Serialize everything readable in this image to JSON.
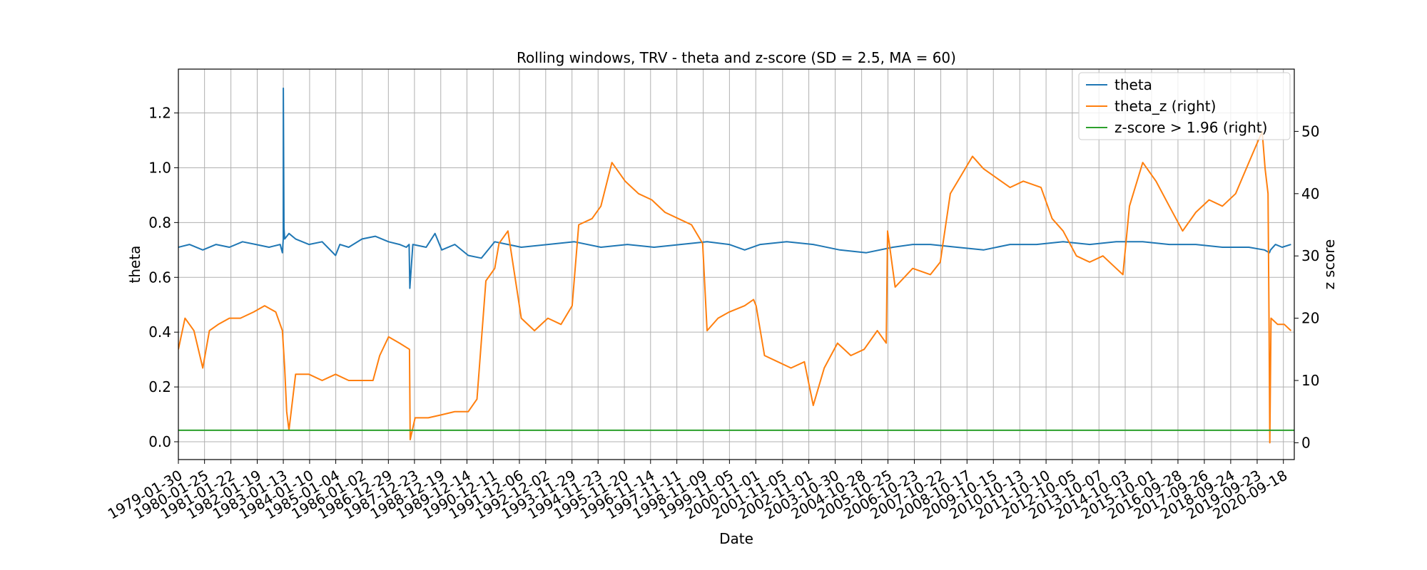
{
  "chart_data": {
    "type": "line",
    "title": "Rolling windows, TRV - theta and z-score (SD = 2.5, MA = 60)",
    "xlabel": "Date",
    "ylabel_left": "theta",
    "ylabel_right": "z score",
    "grid": true,
    "legend_position": "top-right",
    "xlim": [
      "1979-01-30",
      "2021-02-15"
    ],
    "ylim_left": [
      -0.065,
      1.36
    ],
    "ylim_right": [
      -2.7,
      60.0
    ],
    "x_ticks": [
      "1979-01-30",
      "1980-01-25",
      "1981-01-22",
      "1982-01-19",
      "1983-01-13",
      "1984-01-10",
      "1985-01-04",
      "1986-01-02",
      "1986-12-29",
      "1987-12-23",
      "1988-12-19",
      "1989-12-14",
      "1990-12-11",
      "1991-12-06",
      "1992-12-02",
      "1993-11-29",
      "1994-11-23",
      "1995-11-20",
      "1996-11-14",
      "1997-11-11",
      "1998-11-09",
      "1999-11-05",
      "2000-11-01",
      "2001-11-05",
      "2002-11-01",
      "2003-10-30",
      "2004-10-28",
      "2005-10-25",
      "2006-10-23",
      "2007-10-22",
      "2008-10-17",
      "2009-10-15",
      "2010-10-13",
      "2011-10-10",
      "2012-10-05",
      "2013-10-07",
      "2014-10-03",
      "2015-10-01",
      "2016-09-28",
      "2017-09-26",
      "2018-09-24",
      "2019-09-23",
      "2020-09-18"
    ],
    "y_ticks_left": [
      "0.0",
      "0.2",
      "0.4",
      "0.6",
      "0.8",
      "1.0",
      "1.2"
    ],
    "y_ticks_right": [
      "0",
      "10",
      "20",
      "30",
      "40",
      "50"
    ],
    "colors": {
      "theta": "#1f77b4",
      "theta_z": "#ff7f0e",
      "threshold": "#2ca02c"
    },
    "series": [
      {
        "name": "theta",
        "axis": "left",
        "color": "#1f77b4",
        "x": [
          "1979-01-30",
          "1979-07-01",
          "1980-01-01",
          "1980-07-01",
          "1981-01-01",
          "1981-07-01",
          "1982-01-01",
          "1982-07-01",
          "1982-12-01",
          "1983-01-01",
          "1983-01-12",
          "1983-01-13",
          "1983-01-16",
          "1983-01-22",
          "1983-02-01",
          "1983-04-01",
          "1983-07-01",
          "1984-01-01",
          "1984-07-01",
          "1985-01-01",
          "1985-03-01",
          "1985-07-01",
          "1986-01-01",
          "1986-07-01",
          "1987-01-01",
          "1987-06-01",
          "1987-09-01",
          "1987-10-10",
          "1987-10-20",
          "1987-12-01",
          "1988-06-01",
          "1988-10-01",
          "1989-01-01",
          "1989-07-01",
          "1990-01-01",
          "1990-07-01",
          "1991-01-01",
          "1991-07-01",
          "1992-01-01",
          "1993-01-01",
          "1994-01-01",
          "1995-01-01",
          "1996-01-01",
          "1997-01-01",
          "1998-01-01",
          "1999-01-01",
          "1999-11-01",
          "2000-06-01",
          "2001-01-01",
          "2002-01-01",
          "2003-01-01",
          "2004-01-01",
          "2005-01-01",
          "2006-01-01",
          "2006-10-01",
          "2007-06-01",
          "2008-06-01",
          "2009-06-01",
          "2010-06-01",
          "2011-06-01",
          "2012-06-01",
          "2013-06-01",
          "2014-06-01",
          "2015-06-01",
          "2016-06-01",
          "2017-06-01",
          "2018-06-01",
          "2019-06-01",
          "2020-01-01",
          "2020-03-10",
          "2020-03-25",
          "2020-06-01",
          "2020-09-01",
          "2021-01-01"
        ],
        "values": [
          0.71,
          0.72,
          0.7,
          0.72,
          0.71,
          0.73,
          0.72,
          0.71,
          0.72,
          0.69,
          0.74,
          1.29,
          1.12,
          0.78,
          0.74,
          0.76,
          0.74,
          0.72,
          0.73,
          0.68,
          0.72,
          0.71,
          0.74,
          0.75,
          0.73,
          0.72,
          0.71,
          0.72,
          0.56,
          0.72,
          0.71,
          0.76,
          0.7,
          0.72,
          0.68,
          0.67,
          0.73,
          0.72,
          0.71,
          0.72,
          0.73,
          0.71,
          0.72,
          0.71,
          0.72,
          0.73,
          0.72,
          0.7,
          0.72,
          0.73,
          0.72,
          0.7,
          0.69,
          0.71,
          0.72,
          0.72,
          0.71,
          0.7,
          0.72,
          0.72,
          0.73,
          0.72,
          0.73,
          0.73,
          0.72,
          0.72,
          0.71,
          0.71,
          0.7,
          0.69,
          0.7,
          0.72,
          0.71,
          0.72
        ]
      },
      {
        "name": "theta_z (right)",
        "axis": "right",
        "color": "#ff7f0e",
        "x": [
          "1979-01-30",
          "1979-05-01",
          "1979-09-01",
          "1980-01-01",
          "1980-04-01",
          "1980-08-01",
          "1981-01-01",
          "1981-06-01",
          "1981-12-01",
          "1982-05-01",
          "1982-10-01",
          "1983-01-01",
          "1983-02-01",
          "1983-03-01",
          "1983-04-01",
          "1983-07-01",
          "1984-01-01",
          "1984-07-01",
          "1985-01-01",
          "1985-07-01",
          "1986-01-01",
          "1986-06-01",
          "1986-09-01",
          "1987-01-01",
          "1987-06-01",
          "1987-10-15",
          "1987-10-25",
          "1988-01-01",
          "1988-07-01",
          "1989-01-01",
          "1989-07-01",
          "1990-01-01",
          "1990-05-01",
          "1990-09-01",
          "1991-01-01",
          "1991-03-01",
          "1991-07-01",
          "1992-01-01",
          "1992-07-01",
          "1993-01-01",
          "1993-07-01",
          "1993-12-01",
          "1994-03-01",
          "1994-09-01",
          "1995-01-01",
          "1995-06-01",
          "1995-12-01",
          "1996-06-01",
          "1996-12-01",
          "1997-06-01",
          "1997-12-01",
          "1998-06-01",
          "1998-11-01",
          "1999-01-01",
          "1999-06-01",
          "1999-11-01",
          "2000-06-01",
          "2000-10-01",
          "2000-11-05",
          "2001-03-01",
          "2001-09-01",
          "2002-03-01",
          "2002-09-01",
          "2003-01-01",
          "2003-06-01",
          "2003-12-01",
          "2004-06-01",
          "2004-12-01",
          "2005-06-01",
          "2005-10-01",
          "2005-10-20",
          "2006-02-01",
          "2006-10-01",
          "2007-06-01",
          "2007-10-15",
          "2008-03-01",
          "2008-08-01",
          "2009-01-01",
          "2009-06-01",
          "2009-10-01",
          "2010-06-01",
          "2010-12-01",
          "2011-08-01",
          "2012-01-01",
          "2012-06-01",
          "2012-12-01",
          "2013-06-01",
          "2013-12-01",
          "2014-06-01",
          "2014-09-01",
          "2014-12-01",
          "2015-06-01",
          "2015-12-01",
          "2016-06-01",
          "2016-12-01",
          "2017-06-01",
          "2017-12-01",
          "2018-06-01",
          "2018-12-01",
          "2019-06-01",
          "2019-12-01",
          "2020-01-10",
          "2020-02-20",
          "2020-03-05",
          "2020-03-15",
          "2020-04-01",
          "2020-07-01",
          "2020-10-01",
          "2021-01-01"
        ],
        "values": [
          15,
          20,
          18,
          12,
          18,
          19,
          20,
          20,
          21,
          22,
          21,
          18,
          12,
          5,
          2,
          11,
          11,
          10,
          11,
          10,
          10,
          10,
          14,
          17,
          16,
          15,
          0.5,
          4,
          4,
          4.5,
          5,
          5,
          7,
          26,
          28,
          32,
          34,
          20,
          18,
          20,
          19,
          22,
          35,
          36,
          38,
          45,
          42,
          40,
          39,
          37,
          36,
          35,
          32,
          18,
          20,
          21,
          22,
          23,
          22,
          14,
          13,
          12,
          13,
          6,
          12,
          16,
          14,
          15,
          18,
          16,
          34,
          25,
          28,
          27,
          29,
          40,
          43,
          46,
          44,
          43,
          41,
          42,
          41,
          36,
          34,
          30,
          29,
          30,
          28,
          27,
          38,
          45,
          42,
          38,
          34,
          37,
          39,
          38,
          40,
          45,
          50,
          44,
          40,
          18,
          0,
          20,
          19,
          19,
          18
        ]
      },
      {
        "name": "z-score > 1.96 (right)",
        "axis": "right",
        "color": "#2ca02c",
        "x": [
          "1979-01-30",
          "2021-02-15"
        ],
        "values": [
          2.0,
          2.0
        ]
      }
    ]
  }
}
